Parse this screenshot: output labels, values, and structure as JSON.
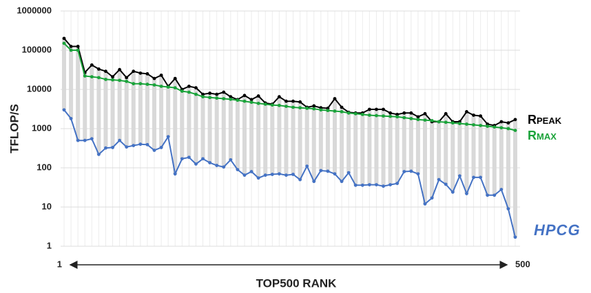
{
  "chart_data": {
    "type": "line",
    "y_label": "TFLOP/S",
    "x_label": "TOP500 RANK",
    "xlim": [
      1,
      500
    ],
    "xticks": [
      1,
      500
    ],
    "ylim": [
      1,
      1000000
    ],
    "yticks": [
      1,
      10,
      100,
      1000,
      10000,
      100000,
      1000000
    ],
    "log_y": true,
    "grid": true,
    "series": [
      {
        "name": "Rpeak",
        "color": "#000000",
        "values": [
          200000,
          125000,
          125000,
          27000,
          42000,
          33000,
          29000,
          21000,
          32000,
          20000,
          29000,
          26000,
          25000,
          19000,
          23000,
          12000,
          19000,
          10000,
          12000,
          11000,
          7500,
          8000,
          7500,
          8500,
          6500,
          5500,
          7000,
          5500,
          6800,
          4500,
          4200,
          6500,
          5000,
          5000,
          4800,
          3500,
          3800,
          3400,
          3300,
          5800,
          3500,
          2600,
          2500,
          2500,
          3100,
          3100,
          3100,
          2500,
          2300,
          2500,
          2500,
          2000,
          2400,
          1500,
          1500,
          2400,
          1500,
          1500,
          2700,
          2200,
          2100,
          1300,
          1200,
          1500,
          1400,
          1700
        ]
      },
      {
        "name": "Rmax",
        "color": "#1aa33a",
        "values": [
          150000,
          100000,
          100000,
          22000,
          21000,
          20000,
          18000,
          17500,
          17000,
          16000,
          14000,
          14000,
          13500,
          13000,
          12000,
          11500,
          11000,
          9000,
          8500,
          7500,
          6500,
          6200,
          6000,
          5800,
          5600,
          5300,
          5000,
          4700,
          4400,
          4200,
          4000,
          3900,
          3700,
          3500,
          3400,
          3300,
          3200,
          3000,
          2900,
          2800,
          2700,
          2500,
          2400,
          2300,
          2200,
          2150,
          2100,
          2050,
          2000,
          1900,
          1800,
          1700,
          1650,
          1600,
          1500,
          1450,
          1400,
          1350,
          1300,
          1250,
          1200,
          1150,
          1100,
          1050,
          1000,
          900
        ]
      },
      {
        "name": "HPCG",
        "color": "#4472c4",
        "values": [
          3000,
          1800,
          500,
          500,
          550,
          220,
          320,
          330,
          500,
          340,
          370,
          400,
          390,
          280,
          330,
          620,
          70,
          170,
          185,
          125,
          170,
          135,
          115,
          105,
          160,
          90,
          65,
          80,
          55,
          65,
          68,
          70,
          65,
          68,
          50,
          110,
          45,
          85,
          82,
          70,
          45,
          75,
          36,
          36,
          37,
          37,
          34,
          37,
          40,
          80,
          82,
          70,
          12,
          17,
          50,
          38,
          24,
          62,
          22,
          57,
          57,
          20,
          20,
          28,
          9,
          1.7
        ]
      }
    ]
  }
}
